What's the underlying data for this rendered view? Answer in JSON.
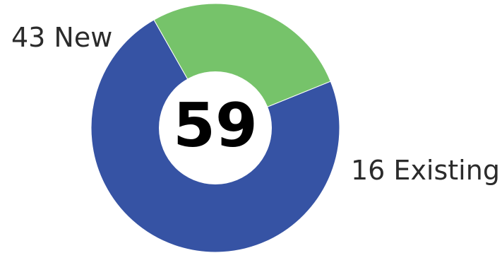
{
  "chart_data": {
    "type": "pie",
    "style": "donut",
    "total": 59,
    "total_label": "59",
    "slices": [
      {
        "name": "New",
        "value": 43,
        "label": "43 New",
        "color": "#3653a4"
      },
      {
        "name": "Existing",
        "value": 16,
        "label": "16 Existing",
        "color": "#76c36a"
      }
    ],
    "title": "",
    "legend": false
  }
}
